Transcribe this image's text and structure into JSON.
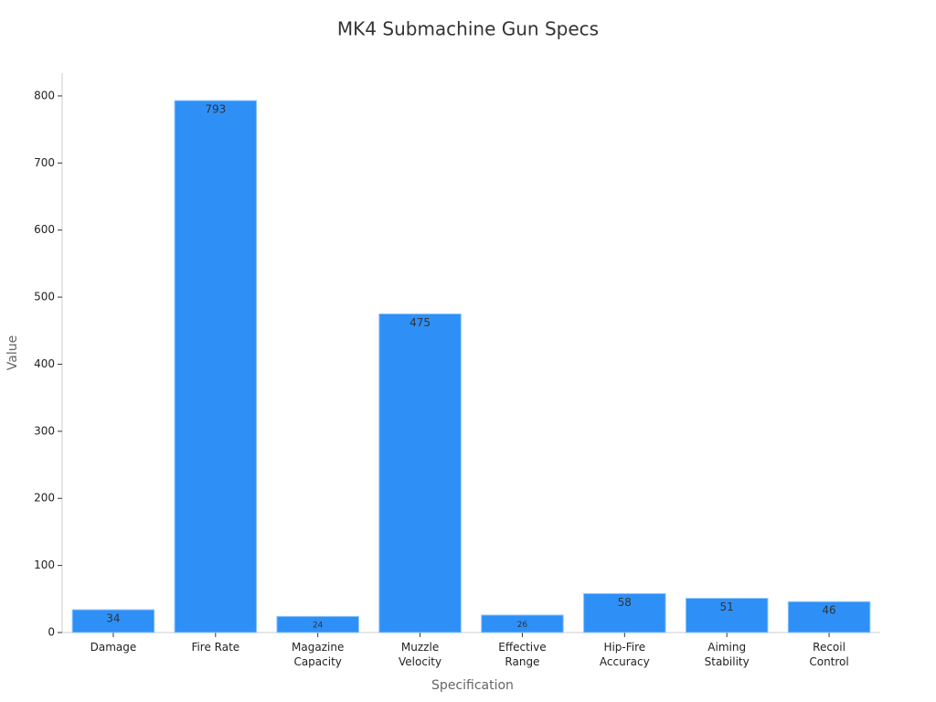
{
  "chart_data": {
    "type": "bar",
    "title": "MK4 Submachine Gun Specs",
    "x_label": "Specification",
    "y_label": "Value",
    "categories": [
      "Damage",
      "Fire Rate",
      "Magazine Capacity",
      "Muzzle Velocity",
      "Effective Range",
      "Hip-Fire Accuracy",
      "Aiming Stability",
      "Recoil Control"
    ],
    "values": [
      34,
      793,
      24,
      475,
      26,
      58,
      51,
      46
    ],
    "color": "#2e90f7",
    "ylim": [
      0,
      834
    ],
    "yticks": [
      0,
      100,
      200,
      300,
      400,
      500,
      600,
      700,
      800
    ],
    "grid": false
  }
}
